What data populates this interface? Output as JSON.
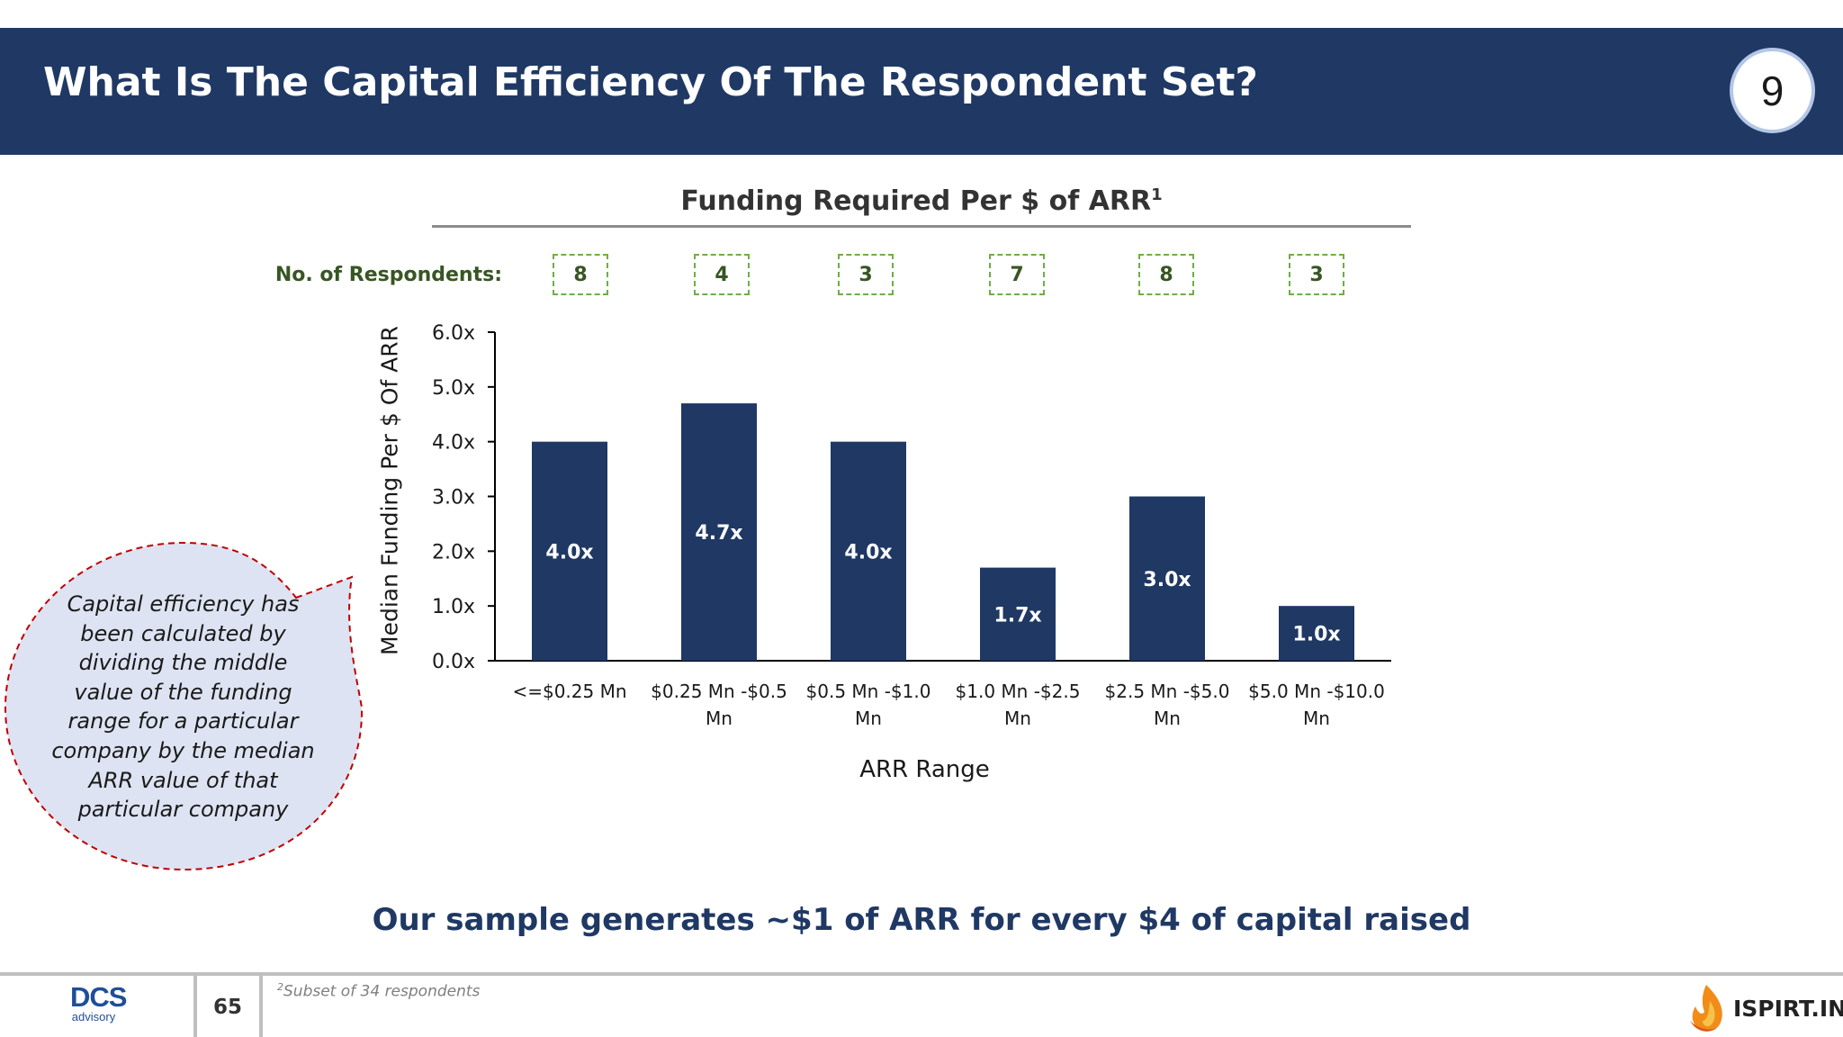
{
  "header": {
    "title": "What Is The Capital Efficiency Of The Respondent Set?",
    "page_badge": "9"
  },
  "respondents": {
    "label": "No. of Respondents:",
    "counts": [
      "8",
      "4",
      "3",
      "7",
      "8",
      "3"
    ]
  },
  "callout": {
    "text": "Capital efficiency has been calculated by dividing the middle value of the funding range for a particular company by the median ARR value of that particular company"
  },
  "takeaway": "Our sample generates ~$1 of ARR for every $4 of capital raised",
  "footer": {
    "logo_main": "DCS",
    "logo_sub": "advisory",
    "page_number": "65",
    "footnote_mark": "2",
    "footnote": "Subset of 34 respondents",
    "partner_logo": "ISPIRT.IN"
  },
  "colors": {
    "header_bg": "#1f3864",
    "bar": "#1f3864",
    "respondent_green": "#375623",
    "callout_fill": "#dde3f2",
    "callout_border": "#c00000"
  },
  "chart_data": {
    "type": "bar",
    "title": "Funding Required Per $ of ARR",
    "title_superscript": "1",
    "xlabel": "ARR Range",
    "ylabel": "Median Funding Per $ Of ARR",
    "categories": [
      [
        "<=$0.25 Mn"
      ],
      [
        "$0.25 Mn -$0.5",
        "Mn"
      ],
      [
        "$0.5 Mn -$1.0",
        "Mn"
      ],
      [
        "$1.0 Mn -$2.5",
        "Mn"
      ],
      [
        "$2.5 Mn -$5.0",
        "Mn"
      ],
      [
        "$5.0 Mn -$10.0",
        "Mn"
      ]
    ],
    "values": [
      4.0,
      4.7,
      4.0,
      1.7,
      3.0,
      1.0
    ],
    "value_labels": [
      "4.0x",
      "4.7x",
      "4.0x",
      "1.7x",
      "3.0x",
      "1.0x"
    ],
    "yticks": [
      "0.0x",
      "1.0x",
      "2.0x",
      "3.0x",
      "4.0x",
      "5.0x",
      "6.0x"
    ],
    "ylim": [
      0,
      6
    ],
    "grid": false,
    "legend": "none"
  }
}
